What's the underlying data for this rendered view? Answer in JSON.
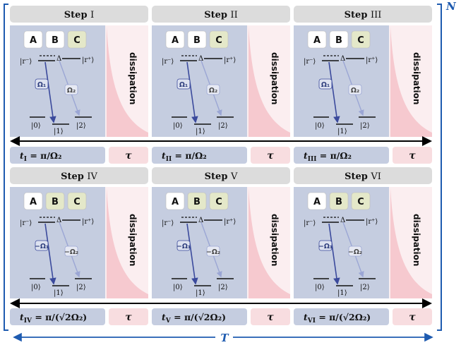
{
  "labels": {
    "box_a": "A",
    "box_b": "B",
    "box_c": "C",
    "dissipation": "dissipation",
    "tau": "τ",
    "total_time": "T",
    "repetitions": "N"
  },
  "levels": {
    "r_minus": "|r⁻⟩",
    "r_plus": "|r⁺⟩",
    "delta": "Δ",
    "ket0": "|0⟩",
    "ket1": "|1⟩",
    "ket2": "|2⟩"
  },
  "rabi": {
    "omega1": "Ω₁",
    "omega2": "Ω₂",
    "minus_omega1": "−Ω₁",
    "minus_omega2": "−Ω₂"
  },
  "steps": [
    {
      "title_word": "Step",
      "numeral": "I",
      "time_label": "t",
      "time_sub": "I",
      "time_expr": " = π/Ω₂"
    },
    {
      "title_word": "Step",
      "numeral": "II",
      "time_label": "t",
      "time_sub": "II",
      "time_expr": " = π/Ω₂"
    },
    {
      "title_word": "Step",
      "numeral": "III",
      "time_label": "t",
      "time_sub": "III",
      "time_expr": " = π/Ω₂"
    },
    {
      "title_word": "Step",
      "numeral": "IV",
      "time_label": "t",
      "time_sub": "IV",
      "time_expr": " = π/(√2Ω₂)"
    },
    {
      "title_word": "Step",
      "numeral": "V",
      "time_label": "t",
      "time_sub": "V",
      "time_expr": " = π/(√2Ω₂)"
    },
    {
      "title_word": "Step",
      "numeral": "VI",
      "time_label": "t",
      "time_sub": "VI",
      "time_expr": " = π/(√2Ω₂)"
    }
  ],
  "colors": {
    "panel_blue": "#c5cde0",
    "title_gray": "#dcdcdc",
    "pink": "#f8dde0",
    "dissipation_curve": "#f3b9c0",
    "arrow_dark": "#3b4a9c",
    "arrow_light": "#9ba6d4",
    "box_green": "#e4e8c9",
    "bracket_blue": "#1e5bb0"
  }
}
